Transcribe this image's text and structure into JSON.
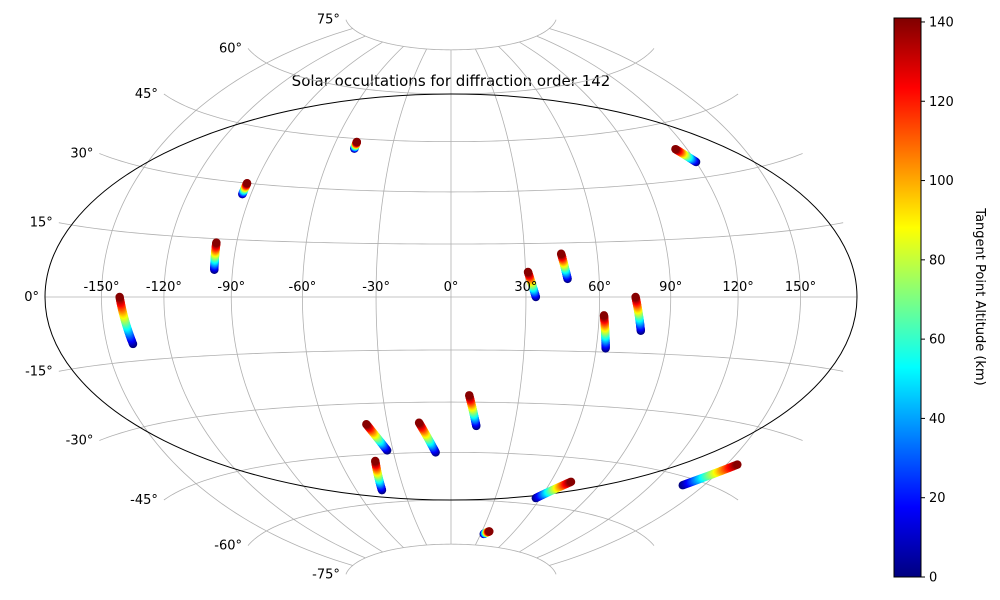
{
  "chart_data": {
    "type": "scatter",
    "projection": "hammer",
    "title": "Solar occultations for diffraction order 142",
    "longitude_ticks": [
      -150,
      -120,
      -90,
      -60,
      -30,
      0,
      30,
      60,
      90,
      120,
      150
    ],
    "longitude_tick_labels": [
      "-150°",
      "-120°",
      "-90°",
      "-60°",
      "-30°",
      "0°",
      "30°",
      "60°",
      "90°",
      "120°",
      "150°"
    ],
    "latitude_ticks": [
      -75,
      -60,
      -45,
      -30,
      -15,
      0,
      15,
      30,
      45,
      60,
      75
    ],
    "latitude_tick_labels": [
      "-75°",
      "-60°",
      "-45°",
      "-30°",
      "-15°",
      "0°",
      "15°",
      "30°",
      "45°",
      "60°",
      "75°"
    ],
    "grid": true,
    "colorbar": {
      "label": "Tangent Point Altitude (km)",
      "colormap": "jet",
      "range": [
        0,
        141
      ],
      "ticks": [
        0,
        20,
        40,
        60,
        80,
        100,
        120,
        140
      ],
      "tick_labels": [
        "0",
        "20",
        "40",
        "60",
        "80",
        "100",
        "120",
        "140"
      ]
    },
    "altitude_range": [
      0,
      140
    ],
    "occultations": [
      {
        "lon_top": -141,
        "lat_top": 0,
        "lon_bottom": -137,
        "lat_bottom": -11
      },
      {
        "lon_top": -99,
        "lat_top": 14,
        "lon_bottom": -98,
        "lat_bottom": 7
      },
      {
        "lon_top": -94,
        "lat_top": 30,
        "lon_bottom": -94,
        "lat_bottom": 27
      },
      {
        "lon_top": -49,
        "lat_top": 44,
        "lon_bottom": -49,
        "lat_bottom": 42
      },
      {
        "lon_top": 31,
        "lat_top": 7,
        "lon_bottom": 34,
        "lat_bottom": 0
      },
      {
        "lon_top": 45,
        "lat_top": 12,
        "lon_bottom": 47,
        "lat_bottom": 5
      },
      {
        "lon_top": 62,
        "lat_top": -5,
        "lon_bottom": 64,
        "lat_bottom": -14
      },
      {
        "lon_top": 75,
        "lat_top": 0,
        "lon_bottom": 78,
        "lat_bottom": -9
      },
      {
        "lon_top": 114,
        "lat_top": 38,
        "lon_bottom": 120,
        "lat_bottom": 34
      },
      {
        "lon_top": 8,
        "lat_top": -28,
        "lon_bottom": 12,
        "lat_bottom": -37
      },
      {
        "lon_top": -15,
        "lat_top": -36,
        "lon_bottom": -8,
        "lat_bottom": -45
      },
      {
        "lon_top": -40,
        "lat_top": -36,
        "lon_bottom": -33,
        "lat_bottom": -44
      },
      {
        "lon_top": -41,
        "lat_top": -47,
        "lon_bottom": -44,
        "lat_bottom": -56
      },
      {
        "lon_top": 72,
        "lat_top": -52,
        "lon_bottom": 57,
        "lat_bottom": -58
      },
      {
        "lon_top": 37,
        "lat_top": -70,
        "lon_bottom": 33,
        "lat_bottom": -71
      },
      {
        "lon_top": 156,
        "lat_top": -39,
        "lon_bottom": 138,
        "lat_bottom": -47
      }
    ]
  }
}
